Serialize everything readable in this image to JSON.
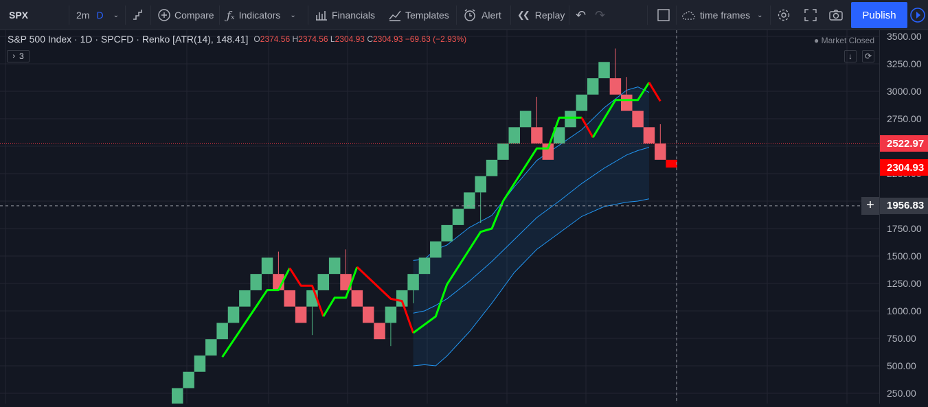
{
  "toolbar": {
    "symbol": "SPX",
    "interval": "2m",
    "interval_badge": "D",
    "compare": "Compare",
    "indicators": "Indicators",
    "financials": "Financials",
    "templates": "Templates",
    "alert": "Alert",
    "replay": "Replay",
    "time_frames": "time frames",
    "publish": "Publish"
  },
  "legend": {
    "title": "S&P 500 Index · 1D · SPCFD · Renko [ATR(14), 148.41]",
    "open_label": "O",
    "open": "2374.56",
    "high_label": "H",
    "high": "2374.56",
    "low_label": "L",
    "low": "2304.93",
    "close_label": "C",
    "close": "2304.93",
    "change": "−69.63 (−2.93%)",
    "indicator_count": "3",
    "market_status": "Market Closed"
  },
  "price_axis": {
    "last_price_label": "2522.97",
    "current_price_label": "2304.93",
    "crosshair_price_label": "1956.83"
  },
  "colors": {
    "background": "#131722",
    "up_brick": "#4fb783",
    "down_brick": "#ef5f6c",
    "last_brick": "#ff0000",
    "line_up": "#00ff00",
    "line_down": "#ff0000",
    "band": "#2196f3"
  },
  "chart_data": {
    "type": "renko",
    "brick_size": 148.41,
    "ylim": [
      200,
      3600
    ],
    "y_ticks": [
      250,
      500,
      750,
      1000,
      1250,
      1500,
      1750,
      2000,
      2250,
      2500,
      2750,
      3000,
      3250,
      3500
    ],
    "bricks": [
      {
        "open": 148.5,
        "close": 297.0
      },
      {
        "open": 297.0,
        "close": 445.5
      },
      {
        "open": 445.5,
        "close": 594.0
      },
      {
        "open": 594.0,
        "close": 742.5
      },
      {
        "open": 742.5,
        "close": 891.0
      },
      {
        "open": 891.0,
        "close": 1039.5
      },
      {
        "open": 1039.5,
        "close": 1188.0
      },
      {
        "open": 1188.0,
        "close": 1336.5
      },
      {
        "open": 1336.5,
        "close": 1485.0
      },
      {
        "open": 1336.5,
        "close": 1188.0,
        "wick_high": 1540
      },
      {
        "open": 1188.0,
        "close": 1039.5
      },
      {
        "open": 1039.5,
        "close": 891.0
      },
      {
        "open": 1039.5,
        "close": 1188.0,
        "wick_low": 780
      },
      {
        "open": 1188.0,
        "close": 1336.5
      },
      {
        "open": 1336.5,
        "close": 1485.0
      },
      {
        "open": 1336.5,
        "close": 1188.0,
        "wick_high": 1560
      },
      {
        "open": 1188.0,
        "close": 1039.5
      },
      {
        "open": 1039.5,
        "close": 891.0
      },
      {
        "open": 891.0,
        "close": 742.5
      },
      {
        "open": 891.0,
        "close": 1039.5,
        "wick_low": 680
      },
      {
        "open": 1039.5,
        "close": 1188.0
      },
      {
        "open": 1188.0,
        "close": 1336.5,
        "wick_low": 1070
      },
      {
        "open": 1336.5,
        "close": 1485.0
      },
      {
        "open": 1485.0,
        "close": 1633.5
      },
      {
        "open": 1633.5,
        "close": 1782.0
      },
      {
        "open": 1782.0,
        "close": 1930.5
      },
      {
        "open": 1930.5,
        "close": 2079.0
      },
      {
        "open": 2079.0,
        "close": 2227.5,
        "wick_low": 1800
      },
      {
        "open": 2227.5,
        "close": 2376.0
      },
      {
        "open": 2376.0,
        "close": 2524.5
      },
      {
        "open": 2524.5,
        "close": 2673.0
      },
      {
        "open": 2673.0,
        "close": 2821.5
      },
      {
        "open": 2673.0,
        "close": 2524.5,
        "wick_high": 2950
      },
      {
        "open": 2524.5,
        "close": 2376.0
      },
      {
        "open": 2524.5,
        "close": 2673.0
      },
      {
        "open": 2673.0,
        "close": 2821.5
      },
      {
        "open": 2821.5,
        "close": 2970.0
      },
      {
        "open": 2970.0,
        "close": 3118.5
      },
      {
        "open": 3118.5,
        "close": 3267.0
      },
      {
        "open": 3118.5,
        "close": 2970.0,
        "wick_high": 3390
      },
      {
        "open": 2970.0,
        "close": 2821.5,
        "wick_high": 3130
      },
      {
        "open": 2821.5,
        "close": 2673.0
      },
      {
        "open": 2673.0,
        "close": 2524.5
      },
      {
        "open": 2524.5,
        "close": 2376.0,
        "wick_high": 2700
      },
      {
        "open": 2376.0,
        "close": 2304.93
      }
    ],
    "trend_line": [
      {
        "i": 4,
        "y": 580
      },
      {
        "i": 8,
        "y": 1190
      },
      {
        "i": 9,
        "y": 1190
      },
      {
        "i": 10,
        "y": 1390
      },
      {
        "i": 11,
        "y": 1230
      },
      {
        "i": 12,
        "y": 1230
      },
      {
        "i": 13,
        "y": 950
      },
      {
        "i": 14,
        "y": 1120
      },
      {
        "i": 15,
        "y": 1120
      },
      {
        "i": 16,
        "y": 1400
      },
      {
        "i": 19,
        "y": 1110
      },
      {
        "i": 20,
        "y": 1090
      },
      {
        "i": 21,
        "y": 800
      },
      {
        "i": 23,
        "y": 950
      },
      {
        "i": 24,
        "y": 1240
      },
      {
        "i": 27,
        "y": 1720
      },
      {
        "i": 28,
        "y": 1750
      },
      {
        "i": 29,
        "y": 2000
      },
      {
        "i": 32,
        "y": 2480
      },
      {
        "i": 33,
        "y": 2480
      },
      {
        "i": 34,
        "y": 2760
      },
      {
        "i": 36,
        "y": 2760
      },
      {
        "i": 37,
        "y": 2580
      },
      {
        "i": 39,
        "y": 2920
      },
      {
        "i": 41,
        "y": 2920
      },
      {
        "i": 42,
        "y": 3080
      },
      {
        "i": 43,
        "y": 2910
      }
    ],
    "band_upper": [
      {
        "i": 21,
        "y": 1460
      },
      {
        "i": 22,
        "y": 1470
      },
      {
        "i": 23,
        "y": 1560
      },
      {
        "i": 24,
        "y": 1600
      },
      {
        "i": 26,
        "y": 1760
      },
      {
        "i": 28,
        "y": 1870
      },
      {
        "i": 30,
        "y": 2130
      },
      {
        "i": 32,
        "y": 2370
      },
      {
        "i": 34,
        "y": 2510
      },
      {
        "i": 36,
        "y": 2650
      },
      {
        "i": 38,
        "y": 2850
      },
      {
        "i": 40,
        "y": 3010
      },
      {
        "i": 41,
        "y": 3040
      },
      {
        "i": 42,
        "y": 2990
      }
    ],
    "band_middle": [
      {
        "i": 21,
        "y": 980
      },
      {
        "i": 22,
        "y": 1000
      },
      {
        "i": 23,
        "y": 1050
      },
      {
        "i": 24,
        "y": 1110
      },
      {
        "i": 26,
        "y": 1270
      },
      {
        "i": 28,
        "y": 1450
      },
      {
        "i": 30,
        "y": 1650
      },
      {
        "i": 32,
        "y": 1850
      },
      {
        "i": 34,
        "y": 2000
      },
      {
        "i": 36,
        "y": 2160
      },
      {
        "i": 38,
        "y": 2300
      },
      {
        "i": 40,
        "y": 2420
      },
      {
        "i": 41,
        "y": 2460
      },
      {
        "i": 42,
        "y": 2490
      }
    ],
    "band_lower": [
      {
        "i": 21,
        "y": 500
      },
      {
        "i": 22,
        "y": 510
      },
      {
        "i": 23,
        "y": 500
      },
      {
        "i": 24,
        "y": 590
      },
      {
        "i": 26,
        "y": 810
      },
      {
        "i": 28,
        "y": 1070
      },
      {
        "i": 30,
        "y": 1350
      },
      {
        "i": 32,
        "y": 1560
      },
      {
        "i": 34,
        "y": 1710
      },
      {
        "i": 36,
        "y": 1860
      },
      {
        "i": 38,
        "y": 1950
      },
      {
        "i": 40,
        "y": 1990
      },
      {
        "i": 41,
        "y": 2000
      },
      {
        "i": 42,
        "y": 2020
      }
    ],
    "last_price": 2522.97,
    "current_price": 2304.93,
    "crosshair_price": 1956.83
  }
}
